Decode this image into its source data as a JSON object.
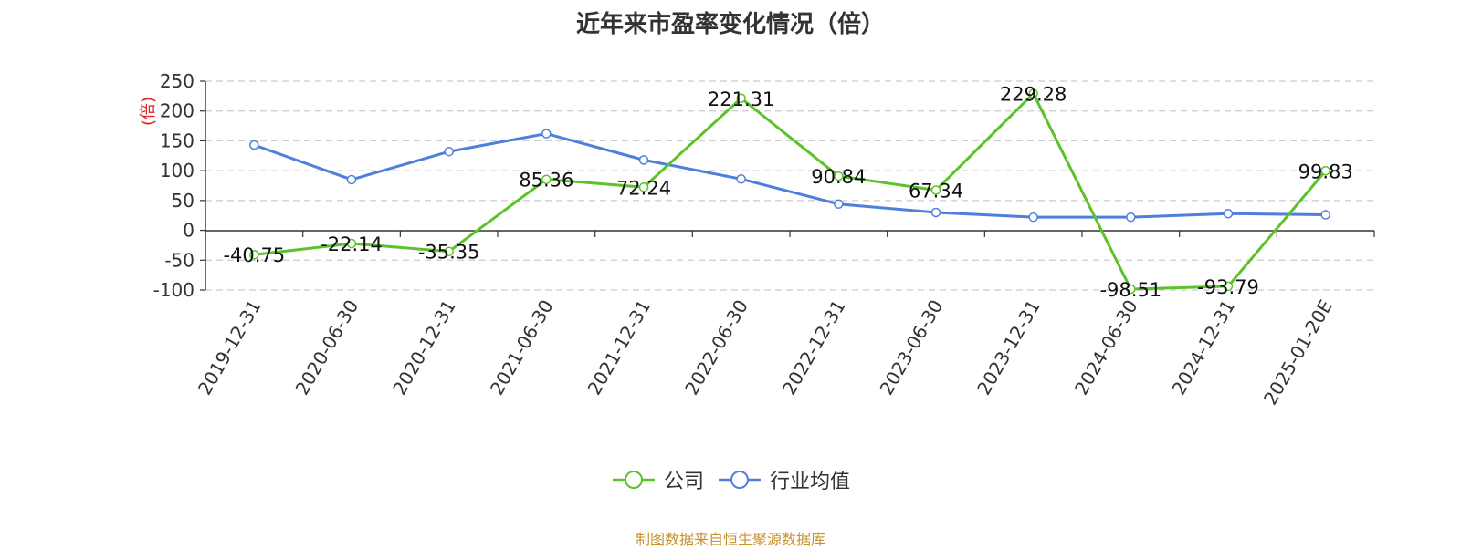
{
  "source_note": "制图数据来自恒生聚源数据库",
  "chart_data": {
    "type": "line",
    "title": "近年来市盈率变化情况（倍）",
    "ylabel": "(倍)",
    "xlabel": "",
    "categories": [
      "2019-12-31",
      "2020-06-30",
      "2020-12-31",
      "2021-06-30",
      "2021-12-31",
      "2022-06-30",
      "2022-12-31",
      "2023-06-30",
      "2023-12-31",
      "2024-06-30",
      "2024-12-31",
      "2025-01-20E"
    ],
    "ylim": [
      -100,
      250
    ],
    "yticks": [
      -100,
      -50,
      0,
      50,
      100,
      150,
      200,
      250
    ],
    "grid": true,
    "legend_position": "bottom-center",
    "series": [
      {
        "name": "公司",
        "color": "#5cc22a",
        "values": [
          -40.75,
          -22.14,
          -35.35,
          85.36,
          72.24,
          221.31,
          90.84,
          67.34,
          229.28,
          -98.51,
          -93.79,
          99.83
        ],
        "labels": [
          "-40.75",
          "-22.14",
          "-35.35",
          "85.36",
          "72.24",
          "221.31",
          "90.84",
          "67.34",
          "229.28",
          "-98.51",
          "-93.79",
          "99.83"
        ]
      },
      {
        "name": "行业均值",
        "color": "#4e7fdc",
        "values": [
          143,
          85,
          132,
          162,
          118,
          86,
          44,
          30,
          22,
          22,
          28,
          26
        ]
      }
    ]
  }
}
